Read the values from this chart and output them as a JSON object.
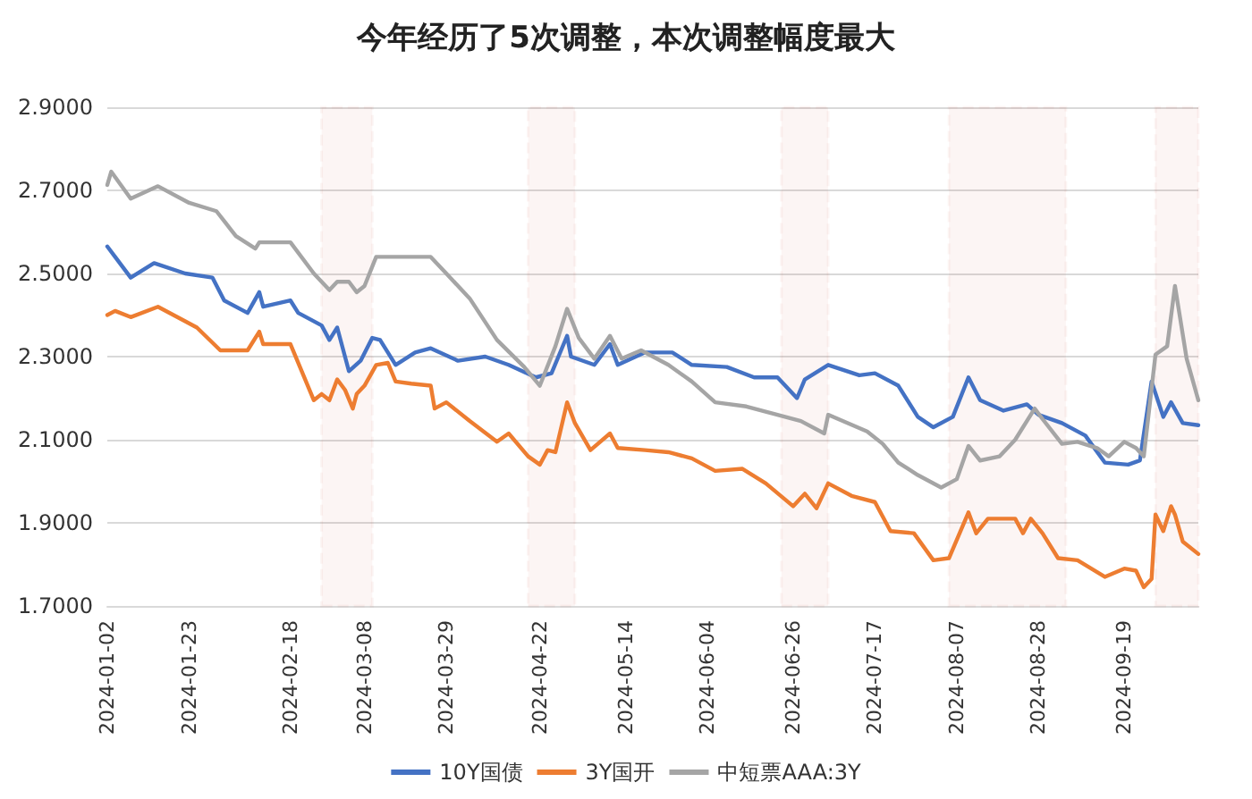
{
  "chart_data": {
    "type": "line",
    "title": "今年经历了5次调整，本次调整幅度最大",
    "xlim": [
      "2024-01-02",
      "2024-10-08"
    ],
    "xticks": [
      "2024-01-02",
      "2024-01-23",
      "2024-02-18",
      "2024-03-08",
      "2024-03-29",
      "2024-04-22",
      "2024-05-14",
      "2024-06-04",
      "2024-06-26",
      "2024-07-17",
      "2024-08-07",
      "2024-08-28",
      "2024-09-19"
    ],
    "ylim": [
      1.7,
      2.9
    ],
    "yticks": [
      {
        "value": 1.7,
        "label": "1.7000"
      },
      {
        "value": 1.9,
        "label": "1.9000"
      },
      {
        "value": 2.1,
        "label": "2.1000"
      },
      {
        "value": 2.3,
        "label": "2.3000"
      },
      {
        "value": 2.5,
        "label": "2.5000"
      },
      {
        "value": 2.7,
        "label": "2.7000"
      },
      {
        "value": 2.9,
        "label": "2.9000"
      }
    ],
    "grid": "y",
    "legend": "bottom",
    "marker": "none",
    "line_style": "solid",
    "series": [
      {
        "name": "10Y国债",
        "color": "#4472c4",
        "x": [
          "2024-01-02",
          "2024-01-04",
          "2024-01-08",
          "2024-01-14",
          "2024-01-22",
          "2024-01-29",
          "2024-02-01",
          "2024-02-07",
          "2024-02-10",
          "2024-02-11",
          "2024-02-18",
          "2024-02-20",
          "2024-02-26",
          "2024-02-28",
          "2024-03-01",
          "2024-03-04",
          "2024-03-07",
          "2024-03-10",
          "2024-03-12",
          "2024-03-16",
          "2024-03-21",
          "2024-03-25",
          "2024-04-01",
          "2024-04-08",
          "2024-04-14",
          "2024-04-21",
          "2024-04-25",
          "2024-04-29",
          "2024-04-30",
          "2024-05-06",
          "2024-05-10",
          "2024-05-12",
          "2024-05-19",
          "2024-05-26",
          "2024-05-31",
          "2024-06-09",
          "2024-06-16",
          "2024-06-22",
          "2024-06-27",
          "2024-06-29",
          "2024-07-05",
          "2024-07-13",
          "2024-07-17",
          "2024-07-23",
          "2024-07-28",
          "2024-08-01",
          "2024-08-06",
          "2024-08-10",
          "2024-08-13",
          "2024-08-19",
          "2024-08-25",
          "2024-08-28",
          "2024-09-03",
          "2024-09-09",
          "2024-09-14",
          "2024-09-20",
          "2024-09-23",
          "2024-09-26",
          "2024-09-29",
          "2024-10-01",
          "2024-10-04",
          "2024-10-08"
        ],
        "values": [
          2.565,
          2.54,
          2.49,
          2.525,
          2.5,
          2.49,
          2.435,
          2.405,
          2.455,
          2.42,
          2.435,
          2.405,
          2.375,
          2.34,
          2.37,
          2.265,
          2.29,
          2.345,
          2.34,
          2.28,
          2.31,
          2.32,
          2.29,
          2.3,
          2.28,
          2.25,
          2.26,
          2.35,
          2.3,
          2.28,
          2.33,
          2.28,
          2.31,
          2.31,
          2.28,
          2.275,
          2.25,
          2.25,
          2.2,
          2.245,
          2.28,
          2.255,
          2.26,
          2.23,
          2.155,
          2.13,
          2.155,
          2.25,
          2.195,
          2.17,
          2.185,
          2.16,
          2.14,
          2.11,
          2.045,
          2.04,
          2.05,
          2.24,
          2.155,
          2.19,
          2.14,
          2.135
        ]
      },
      {
        "name": "3Y国开",
        "color": "#ed7d31",
        "x": [
          "2024-01-02",
          "2024-01-04",
          "2024-01-08",
          "2024-01-15",
          "2024-01-22",
          "2024-01-25",
          "2024-01-31",
          "2024-02-07",
          "2024-02-10",
          "2024-02-11",
          "2024-02-18",
          "2024-02-24",
          "2024-02-26",
          "2024-02-28",
          "2024-03-01",
          "2024-03-03",
          "2024-03-05",
          "2024-03-06",
          "2024-03-08",
          "2024-03-11",
          "2024-03-14",
          "2024-03-16",
          "2024-03-20",
          "2024-03-25",
          "2024-03-26",
          "2024-03-29",
          "2024-04-04",
          "2024-04-11",
          "2024-04-14",
          "2024-04-19",
          "2024-04-22",
          "2024-04-24",
          "2024-04-26",
          "2024-04-29",
          "2024-05-01",
          "2024-05-05",
          "2024-05-10",
          "2024-05-12",
          "2024-05-19",
          "2024-05-25",
          "2024-05-31",
          "2024-06-06",
          "2024-06-13",
          "2024-06-19",
          "2024-06-26",
          "2024-06-29",
          "2024-07-02",
          "2024-07-05",
          "2024-07-11",
          "2024-07-17",
          "2024-07-21",
          "2024-07-27",
          "2024-08-01",
          "2024-08-05",
          "2024-08-10",
          "2024-08-12",
          "2024-08-15",
          "2024-08-22",
          "2024-08-24",
          "2024-08-26",
          "2024-08-29",
          "2024-09-02",
          "2024-09-07",
          "2024-09-14",
          "2024-09-19",
          "2024-09-22",
          "2024-09-24",
          "2024-09-26",
          "2024-09-27",
          "2024-09-29",
          "2024-10-01",
          "2024-10-02",
          "2024-10-04",
          "2024-10-08"
        ],
        "values": [
          2.4,
          2.41,
          2.395,
          2.42,
          2.385,
          2.37,
          2.315,
          2.315,
          2.36,
          2.33,
          2.33,
          2.195,
          2.21,
          2.195,
          2.245,
          2.22,
          2.175,
          2.21,
          2.23,
          2.28,
          2.285,
          2.24,
          2.235,
          2.23,
          2.175,
          2.19,
          2.145,
          2.095,
          2.115,
          2.06,
          2.04,
          2.075,
          2.07,
          2.19,
          2.14,
          2.075,
          2.115,
          2.08,
          2.075,
          2.07,
          2.055,
          2.025,
          2.03,
          1.995,
          1.94,
          1.97,
          1.935,
          1.995,
          1.965,
          1.95,
          1.88,
          1.875,
          1.81,
          1.815,
          1.925,
          1.875,
          1.91,
          1.91,
          1.875,
          1.91,
          1.875,
          1.815,
          1.81,
          1.77,
          1.79,
          1.785,
          1.745,
          1.765,
          1.92,
          1.88,
          1.94,
          1.92,
          1.855,
          1.825
        ]
      },
      {
        "name": "中短票AAA:3Y",
        "color": "#a5a5a5",
        "x": [
          "2024-01-02",
          "2024-01-03",
          "2024-01-08",
          "2024-01-15",
          "2024-01-23",
          "2024-01-30",
          "2024-02-04",
          "2024-02-09",
          "2024-02-10",
          "2024-02-18",
          "2024-02-24",
          "2024-02-28",
          "2024-03-01",
          "2024-03-04",
          "2024-03-06",
          "2024-03-08",
          "2024-03-11",
          "2024-03-20",
          "2024-03-25",
          "2024-03-29",
          "2024-04-04",
          "2024-04-11",
          "2024-04-18",
          "2024-04-22",
          "2024-04-26",
          "2024-04-29",
          "2024-05-02",
          "2024-05-06",
          "2024-05-10",
          "2024-05-13",
          "2024-05-18",
          "2024-05-25",
          "2024-05-31",
          "2024-06-06",
          "2024-06-14",
          "2024-06-22",
          "2024-06-28",
          "2024-07-04",
          "2024-07-05",
          "2024-07-15",
          "2024-07-19",
          "2024-07-23",
          "2024-07-28",
          "2024-08-03",
          "2024-08-07",
          "2024-08-10",
          "2024-08-13",
          "2024-08-18",
          "2024-08-22",
          "2024-08-27",
          "2024-08-29",
          "2024-09-03",
          "2024-09-07",
          "2024-09-12",
          "2024-09-15",
          "2024-09-19",
          "2024-09-22",
          "2024-09-24",
          "2024-09-27",
          "2024-09-30",
          "2024-10-02",
          "2024-10-05",
          "2024-10-08"
        ],
        "values": [
          2.713,
          2.745,
          2.68,
          2.71,
          2.67,
          2.65,
          2.59,
          2.56,
          2.575,
          2.575,
          2.5,
          2.46,
          2.48,
          2.48,
          2.455,
          2.47,
          2.54,
          2.54,
          2.54,
          2.5,
          2.44,
          2.34,
          2.275,
          2.23,
          2.325,
          2.415,
          2.345,
          2.295,
          2.35,
          2.295,
          2.315,
          2.28,
          2.24,
          2.19,
          2.18,
          2.16,
          2.145,
          2.115,
          2.16,
          2.12,
          2.09,
          2.045,
          2.015,
          1.985,
          2.005,
          2.085,
          2.05,
          2.06,
          2.1,
          2.175,
          2.15,
          2.09,
          2.095,
          2.08,
          2.06,
          2.095,
          2.08,
          2.06,
          2.305,
          2.325,
          2.47,
          2.295,
          2.195
        ]
      }
    ],
    "bands": [
      {
        "axis": "x",
        "from": "2024-02-26",
        "to": "2024-03-10",
        "color": "#c0392b"
      },
      {
        "axis": "x",
        "from": "2024-04-19",
        "to": "2024-05-01",
        "color": "#c0392b"
      },
      {
        "axis": "x",
        "from": "2024-06-23",
        "to": "2024-07-05",
        "color": "#c0392b"
      },
      {
        "axis": "x",
        "from": "2024-08-05",
        "to": "2024-09-04",
        "color": "#c0392b"
      },
      {
        "axis": "x",
        "from": "2024-09-27",
        "to": "2024-10-08",
        "color": "#c0392b"
      }
    ]
  }
}
